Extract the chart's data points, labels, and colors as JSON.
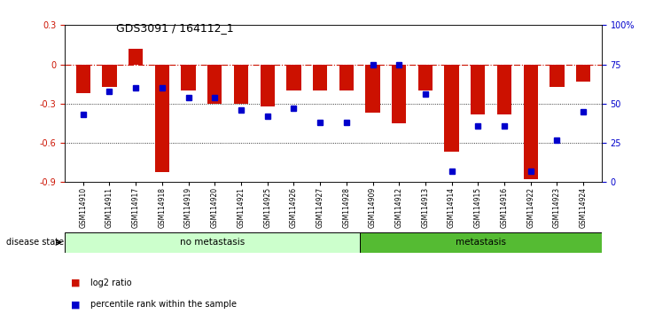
{
  "title": "GDS3091 / 164112_1",
  "samples": [
    "GSM114910",
    "GSM114911",
    "GSM114917",
    "GSM114918",
    "GSM114919",
    "GSM114920",
    "GSM114921",
    "GSM114925",
    "GSM114926",
    "GSM114927",
    "GSM114928",
    "GSM114909",
    "GSM114912",
    "GSM114913",
    "GSM114914",
    "GSM114915",
    "GSM114916",
    "GSM114922",
    "GSM114923",
    "GSM114924"
  ],
  "log2_ratio": [
    -0.22,
    -0.17,
    0.12,
    -0.82,
    -0.2,
    -0.3,
    -0.3,
    -0.32,
    -0.2,
    -0.2,
    -0.2,
    -0.37,
    -0.45,
    -0.2,
    -0.67,
    -0.38,
    -0.38,
    -0.88,
    -0.17,
    -0.13
  ],
  "percentile_pct": [
    43,
    58,
    60,
    60,
    54,
    54,
    46,
    42,
    47,
    38,
    38,
    75,
    75,
    56,
    7,
    36,
    36,
    7,
    27,
    45
  ],
  "no_metastasis_count": 11,
  "metastasis_count": 9,
  "ylim_left": [
    -0.9,
    0.3
  ],
  "ylim_right": [
    0,
    100
  ],
  "yticks_left": [
    -0.9,
    -0.6,
    -0.3,
    0.0,
    0.3
  ],
  "ytick_labels_left": [
    "-0.9",
    "-0.6",
    "-0.3",
    "0",
    "0.3"
  ],
  "yticks_right": [
    0,
    25,
    50,
    75,
    100
  ],
  "ytick_labels_right": [
    "0",
    "25",
    "50",
    "75",
    "100%"
  ],
  "bar_color": "#CC1100",
  "dot_color": "#0000CC",
  "no_meta_color": "#CCFFCC",
  "meta_color": "#55BB33",
  "ref_line_color": "#CC1100",
  "dot_line_color": "#000099"
}
